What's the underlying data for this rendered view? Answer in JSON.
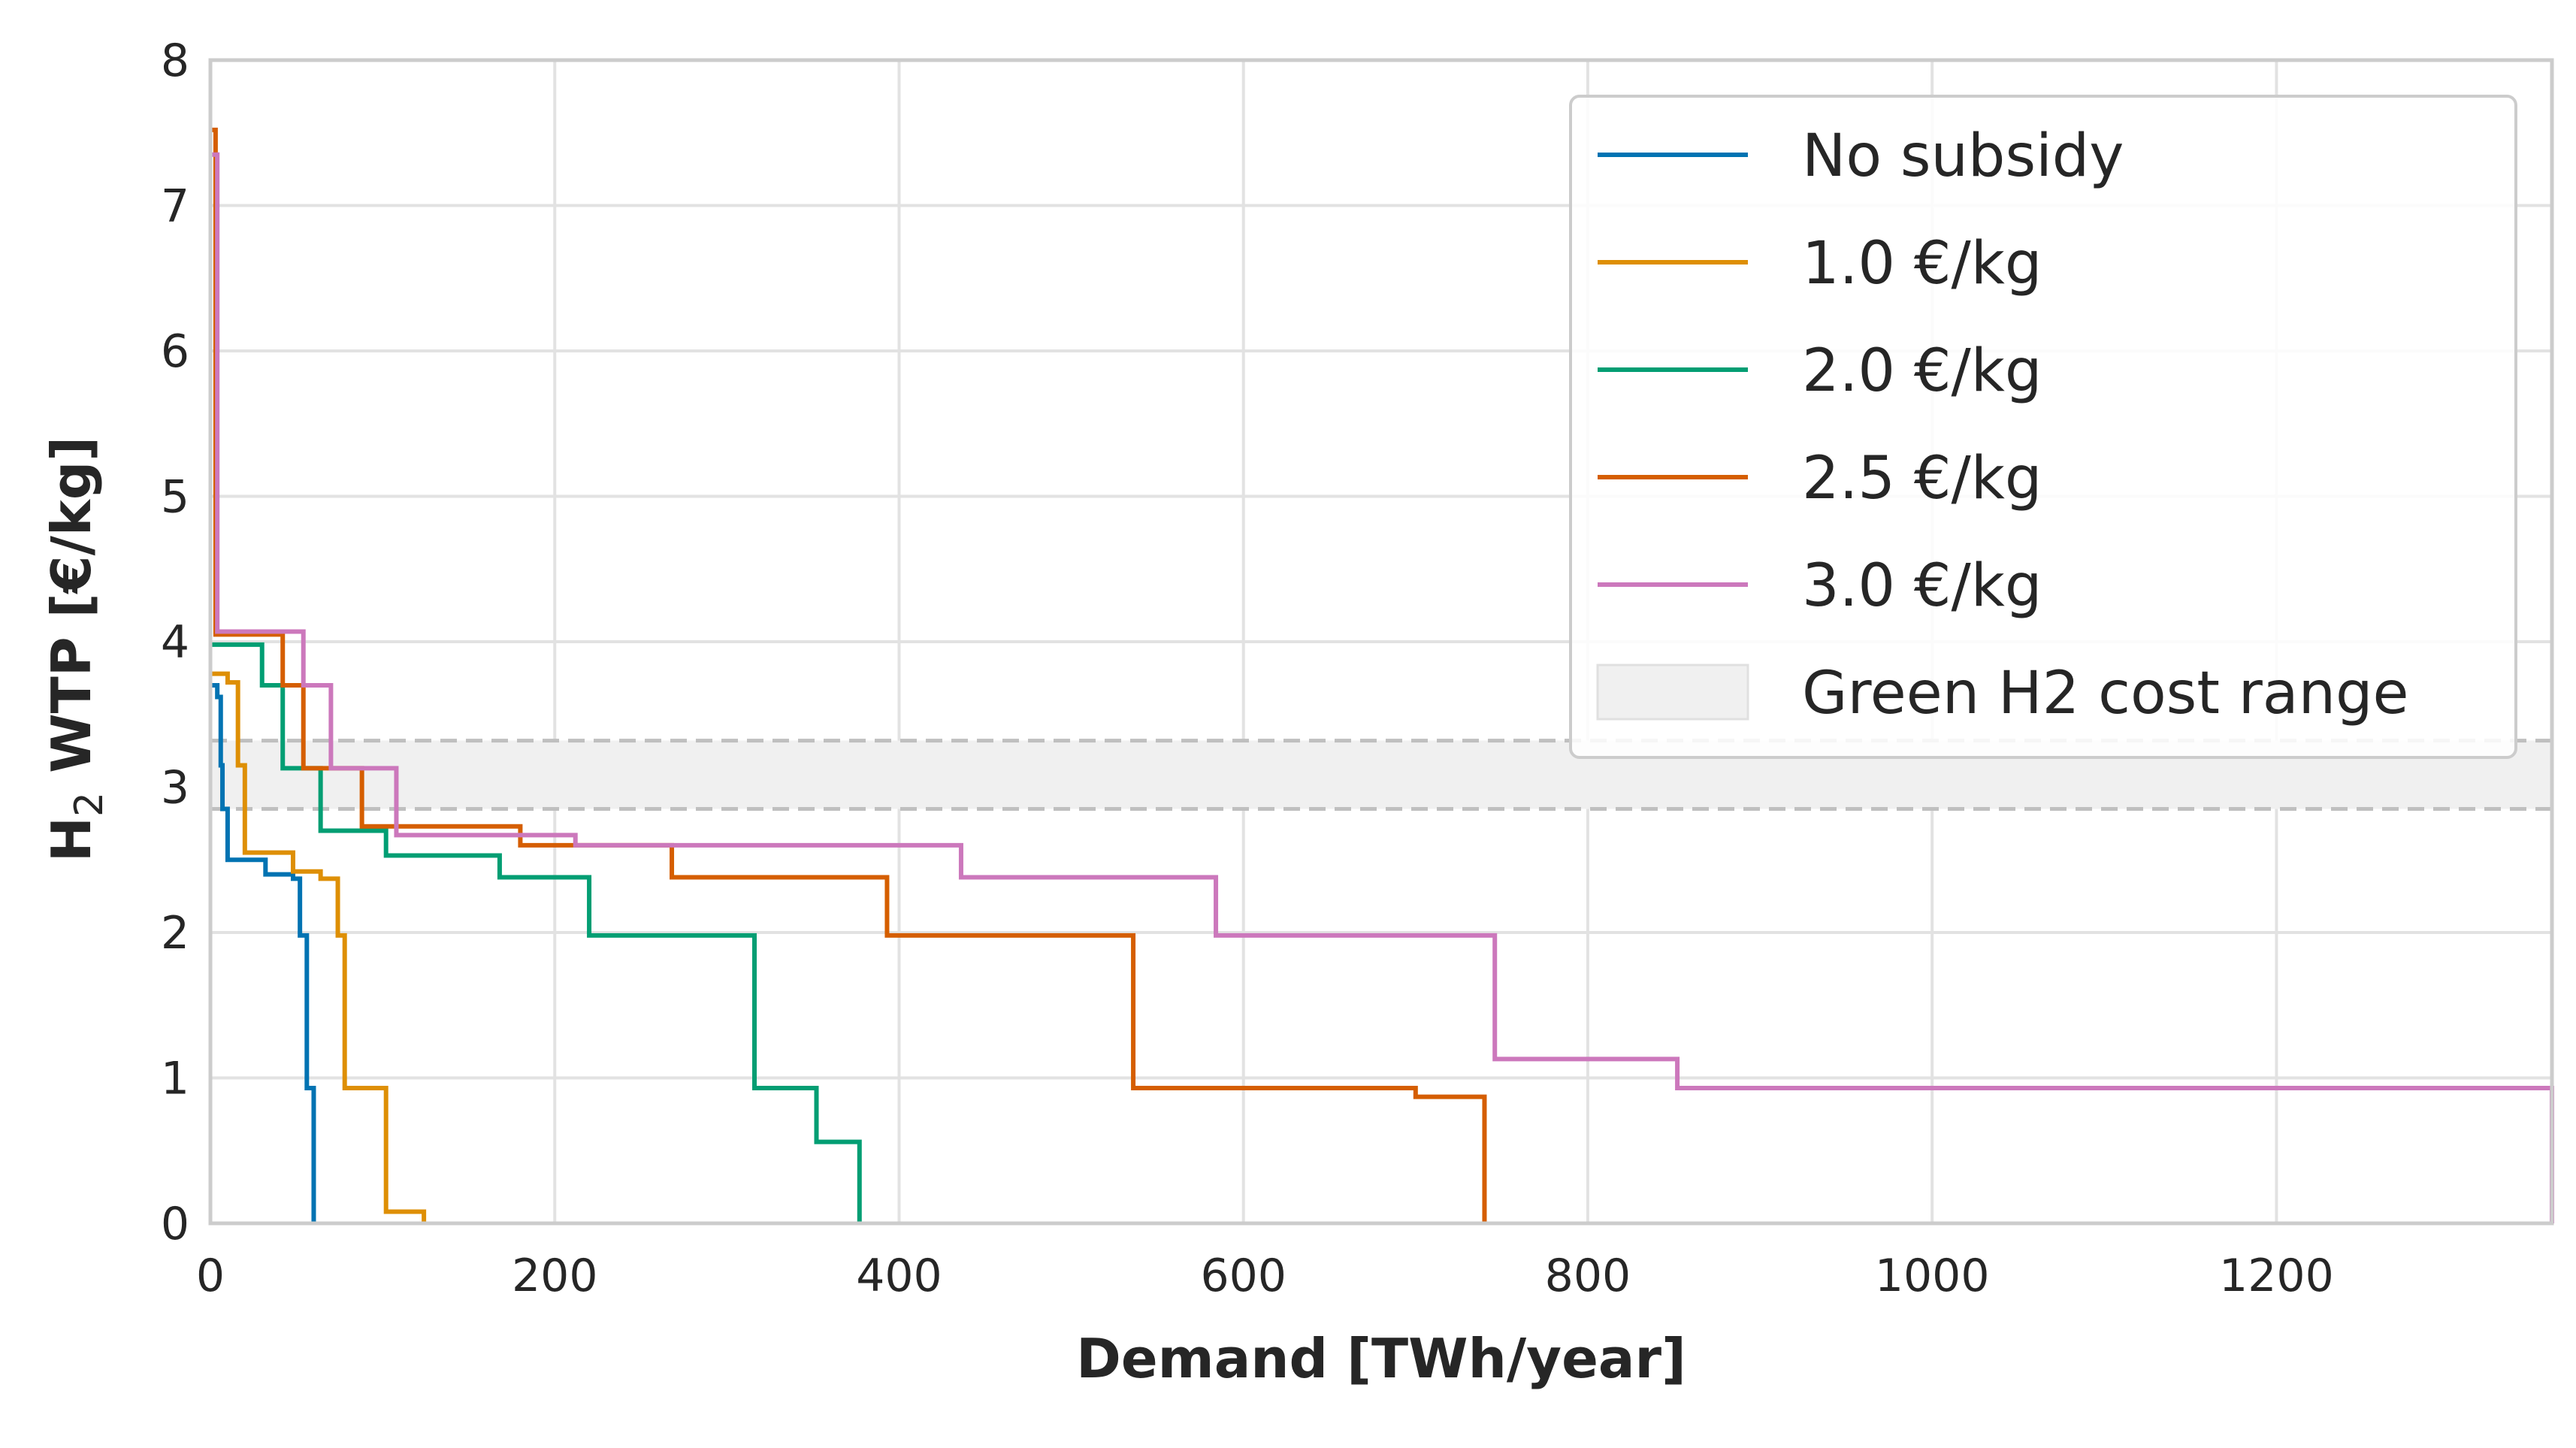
{
  "chart_data": {
    "type": "line",
    "title": "",
    "xlabel": "Demand [TWh/year]",
    "ylabel_main": "H",
    "ylabel_sub": "2",
    "ylabel_rest": " WTP [€/kg]",
    "xlim": [
      0,
      1360
    ],
    "ylim": [
      0,
      8
    ],
    "xticks": [
      0,
      200,
      400,
      600,
      800,
      1000,
      1200
    ],
    "yticks": [
      0,
      1,
      2,
      3,
      4,
      5,
      6,
      7,
      8
    ],
    "grid": true,
    "legend_position": "top-right",
    "band": {
      "name": "Green H2 cost range",
      "y_low": 2.85,
      "y_high": 3.32,
      "color": "#f0f0f0",
      "line_color": "#bfbfbf"
    },
    "series": [
      {
        "name": "No subsidy",
        "color": "#0173b2",
        "steps": [
          [
            0,
            3.7
          ],
          [
            4,
            3.62
          ],
          [
            6,
            3.15
          ],
          [
            7,
            2.85
          ],
          [
            10,
            2.5
          ],
          [
            32,
            2.4
          ],
          [
            48,
            2.37
          ],
          [
            52,
            1.98
          ],
          [
            56,
            0.93
          ],
          [
            60,
            0
          ]
        ]
      },
      {
        "name": "1.0 €/kg",
        "color": "#de8f05",
        "steps": [
          [
            0,
            3.78
          ],
          [
            10,
            3.72
          ],
          [
            16,
            3.15
          ],
          [
            20,
            2.55
          ],
          [
            48,
            2.42
          ],
          [
            64,
            2.37
          ],
          [
            74,
            1.98
          ],
          [
            78,
            0.93
          ],
          [
            102,
            0.08
          ],
          [
            124,
            0
          ]
        ]
      },
      {
        "name": "2.0 €/kg",
        "color": "#029e73",
        "steps": [
          [
            0,
            3.98
          ],
          [
            30,
            3.7
          ],
          [
            42,
            3.13
          ],
          [
            64,
            2.7
          ],
          [
            102,
            2.53
          ],
          [
            168,
            2.38
          ],
          [
            220,
            1.98
          ],
          [
            316,
            0.93
          ],
          [
            352,
            0.56
          ],
          [
            377,
            0
          ]
        ]
      },
      {
        "name": "2.5 €/kg",
        "color": "#d55e00",
        "steps": [
          [
            0,
            7.52
          ],
          [
            3,
            4.05
          ],
          [
            42,
            3.7
          ],
          [
            54,
            3.13
          ],
          [
            88,
            2.73
          ],
          [
            180,
            2.6
          ],
          [
            268,
            2.38
          ],
          [
            393,
            1.98
          ],
          [
            536,
            0.93
          ],
          [
            700,
            0.87
          ],
          [
            740,
            0
          ]
        ]
      },
      {
        "name": "3.0 €/kg",
        "color": "#cc78bc",
        "steps": [
          [
            0,
            7.35
          ],
          [
            4,
            4.07
          ],
          [
            54,
            3.7
          ],
          [
            70,
            3.13
          ],
          [
            108,
            2.67
          ],
          [
            212,
            2.6
          ],
          [
            436,
            2.38
          ],
          [
            584,
            1.98
          ],
          [
            746,
            1.13
          ],
          [
            852,
            0.93
          ],
          [
            1360,
            0
          ]
        ]
      }
    ]
  }
}
